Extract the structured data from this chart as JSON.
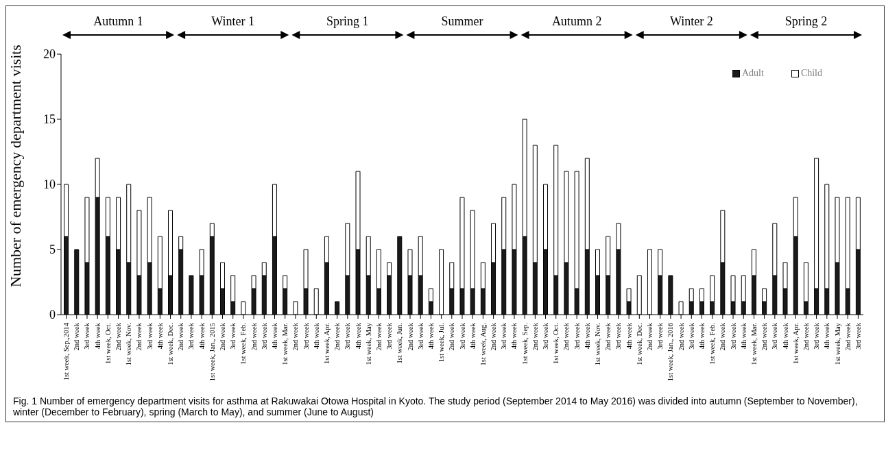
{
  "chart_data": {
    "type": "bar",
    "stacked": true,
    "ylabel": "Number of emergency department visits",
    "categories": [
      "1st week, Sep.,2014",
      "2nd week",
      "3rd week",
      "4th week",
      "1st week, Oct.",
      "2nd week",
      "1st week, Nov.",
      "2nd week",
      "3rd week",
      "4th week",
      "1st week, Dec.",
      "2nd week",
      "3rd week",
      "4th week",
      "1st week, Jan., 2015",
      "2nd week",
      "3rd week",
      "1st week, Feb.",
      "2nd week",
      "3rd week",
      "4th week",
      "1st week, Mar.",
      "2nd week",
      "3rd week",
      "4th week",
      "1st week, Apr.",
      "2nd week",
      "3rd week",
      "4th week",
      "1st week, May",
      "2nd week",
      "3rd week",
      "1st week, Jun.",
      "2nd week",
      "3rd week",
      "4th week",
      "1st week, Jul.",
      "2nd week",
      "3rd week",
      "4th week",
      "1st week, Aug.",
      "2nd week",
      "3rd week",
      "4th week",
      "1st week, Sep.",
      "2nd week",
      "3rd week",
      "1st week, Oct.",
      "2nd week",
      "3rd week",
      "4th week",
      "1st week, Nov.",
      "2nd week",
      "3rd week",
      "4th week",
      "1st week, Dec.",
      "2nd week",
      "3rd week",
      "1st week, Jan., 2016",
      "2nd week",
      "3rd week",
      "4th week",
      "1st week, Feb.",
      "2nd week",
      "3rd week",
      "4th week",
      "1st week, Mar.",
      "2nd week",
      "3rd week",
      "4th week",
      "1st week, Apr.",
      "2nd week",
      "3rd week",
      "4th week",
      "1st week, May",
      "2nd week",
      "3rd week"
    ],
    "series": [
      {
        "name": "Adult",
        "color": "#1a1a1a",
        "values": [
          6,
          5,
          4,
          9,
          6,
          5,
          4,
          3,
          4,
          2,
          3,
          5,
          3,
          3,
          6,
          2,
          1,
          0,
          2,
          3,
          6,
          2,
          0,
          2,
          0,
          4,
          1,
          3,
          5,
          3,
          2,
          3,
          6,
          3,
          3,
          1,
          0,
          2,
          2,
          2,
          2,
          4,
          5,
          5,
          6,
          4,
          5,
          3,
          4,
          2,
          5,
          3,
          3,
          5,
          1,
          0,
          0,
          3,
          3,
          0,
          1,
          1,
          1,
          4,
          1,
          1,
          3,
          1,
          3,
          2,
          6,
          1,
          2,
          2,
          4,
          2,
          5
        ]
      },
      {
        "name": "Child",
        "color": "#ffffff",
        "values": [
          4,
          0,
          5,
          3,
          3,
          4,
          6,
          5,
          5,
          4,
          5,
          1,
          0,
          2,
          1,
          2,
          2,
          1,
          1,
          1,
          4,
          1,
          1,
          3,
          2,
          2,
          0,
          4,
          6,
          3,
          3,
          1,
          0,
          2,
          3,
          1,
          5,
          2,
          7,
          6,
          2,
          3,
          4,
          5,
          9,
          9,
          5,
          10,
          7,
          9,
          7,
          2,
          3,
          2,
          1,
          3,
          5,
          2,
          0,
          1,
          1,
          1,
          2,
          4,
          2,
          2,
          2,
          1,
          4,
          2,
          3,
          3,
          10,
          8,
          5,
          7,
          4
        ]
      }
    ],
    "ylim": [
      0,
      20
    ],
    "yticks": [
      0,
      5,
      10,
      15,
      20
    ],
    "legend": "top right",
    "annotations": [
      "Autumn 1",
      "Winter 1",
      "Spring 1",
      "Summer",
      "Autumn 2",
      "Winter 2",
      "Spring 2"
    ],
    "title": "Fig. 1 Number of emergency department visits for asthma at Rakuwakai Otowa Hospital in Kyoto. The study period (September 2014 to May 2016) was divided into autumn (September to November), winter (December to February), spring (March to May), and summer (June to August)"
  }
}
